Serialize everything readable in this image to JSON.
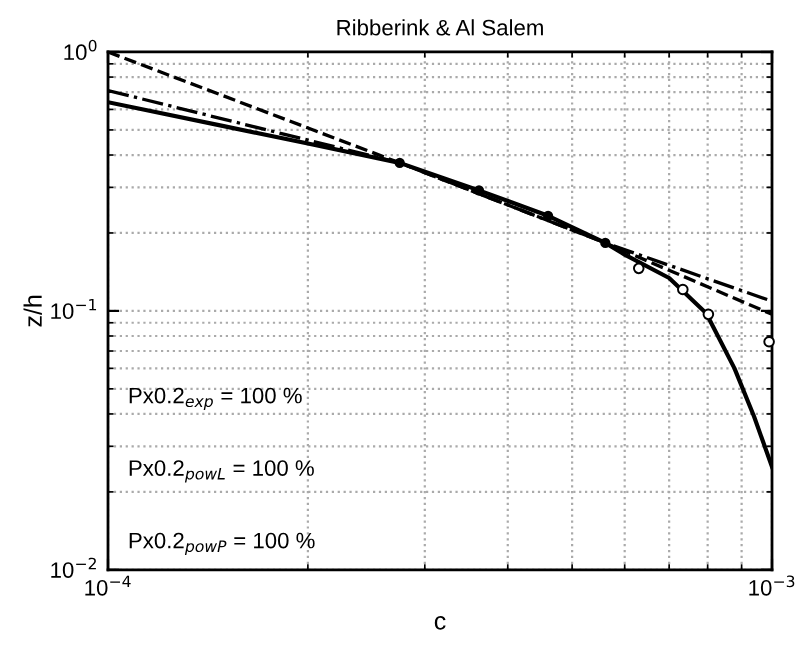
{
  "chart_data": {
    "type": "line",
    "title": "Ribberink & Al Salem",
    "xlabel": "c",
    "ylabel": "z/h",
    "log": "xy",
    "grid": true,
    "xlim": [
      0.0001,
      0.001
    ],
    "ylim": [
      0.01,
      1
    ],
    "xticks": [
      {
        "value": 0.0001,
        "label": "10$^{−4}$"
      },
      {
        "value": 0.001,
        "label": "10$^{−3}$"
      }
    ],
    "yticks": [
      {
        "value": 0.01,
        "label": "10$^{−2}$"
      },
      {
        "value": 0.1,
        "label": "10$^{−1}$"
      },
      {
        "value": 1,
        "label": "10$^{0}$"
      }
    ],
    "series": [
      {
        "line_style": "solid",
        "color": "#000000",
        "x": [
          0.0001,
          0.00015,
          0.0002,
          0.000275,
          0.000362,
          0.00046,
          0.000561,
          0.0006,
          0.0007,
          0.000796,
          0.000878,
          0.00094,
          0.001
        ],
        "values": [
          0.64,
          0.516,
          0.443,
          0.373,
          0.292,
          0.233,
          0.183,
          0.165,
          0.134,
          0.098,
          0.06,
          0.039,
          0.025
        ]
      },
      {
        "line_style": "dashed",
        "color": "#000000",
        "x": [
          0.0001,
          0.000275,
          0.000561,
          0.001
        ],
        "values": [
          1.0,
          0.373,
          0.183,
          0.097
        ]
      },
      {
        "line_style": "dashdot",
        "color": "#000000",
        "x": [
          0.0001,
          0.000275,
          0.000561,
          0.001
        ],
        "values": [
          0.71,
          0.373,
          0.183,
          0.109
        ]
      },
      {
        "type": "scatter",
        "marker": "circle",
        "color": "#000000",
        "x": [
          0.000275,
          0.000362,
          0.00046,
          0.000561
        ],
        "values": [
          0.373,
          0.292,
          0.233,
          0.183
        ]
      },
      {
        "type": "scatter",
        "marker": "circle-open",
        "color": "#000000",
        "x": [
          0.00063,
          0.000734,
          0.000802,
          0.00099
        ],
        "values": [
          0.146,
          0.121,
          0.097,
          0.076
        ]
      }
    ],
    "annotations": [
      "Px0.2$_{exp}$ = 100 %",
      "Px0.2$_{powL}$ = 100 %",
      "Px0.2$_{powP}$ = 100 %"
    ]
  }
}
